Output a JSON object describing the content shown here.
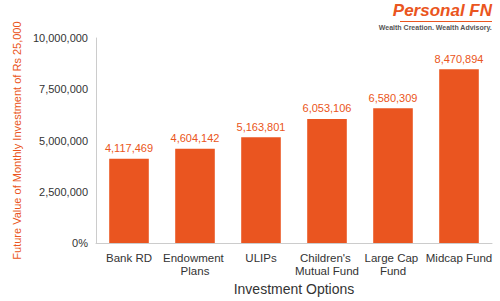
{
  "chart_data": {
    "type": "bar",
    "categories": [
      "Bank RD",
      "Endowment Plans",
      "ULIPs",
      "Children's Mutual Fund",
      "Large Cap Fund",
      "Midcap Fund"
    ],
    "values": [
      4117469,
      4604142,
      5163801,
      6053106,
      6580309,
      8470894
    ],
    "value_labels": [
      "4,117,469",
      "4,604,142",
      "5,163,801",
      "6,053,106",
      "6,580,309",
      "8,470,894"
    ],
    "color": "#ea5520",
    "data_labels": true,
    "x_label": "Investment Options",
    "y_label": "Future Value of Monthly Investment of Rs 25,000",
    "ylim": [
      0,
      10000000
    ],
    "yticks": [
      {
        "value": 0,
        "label": "0%"
      },
      {
        "value": 2500000,
        "label": "2,500,000"
      },
      {
        "value": 5000000,
        "label": "5,000,000"
      },
      {
        "value": 7500000,
        "label": "7,500,000"
      },
      {
        "value": 10000000,
        "label": "10,000,000"
      }
    ],
    "grid": false,
    "annotations": [
      "Personal FN",
      "Wealth Creation. Wealth Advisory."
    ]
  }
}
